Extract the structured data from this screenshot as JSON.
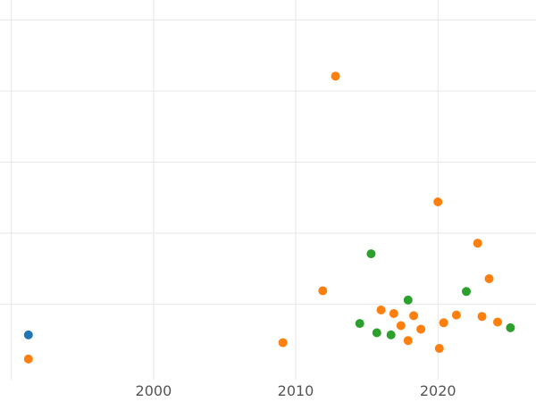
{
  "chart_data": {
    "type": "scatter",
    "title": "",
    "xlabel": "",
    "ylabel": "",
    "legend": "none",
    "grid": true,
    "x_ticks": [
      2000,
      2010,
      2020
    ],
    "x_gridlines": [
      1990,
      2000,
      2010,
      2020
    ],
    "y_gridlines": [
      1,
      2,
      3,
      4,
      5
    ],
    "x_range": [
      1989.2,
      2026.9
    ],
    "y_range": [
      -0.06,
      5.28
    ],
    "marker_radius": 5,
    "colors": {
      "blue": "#1f77b4",
      "orange": "#ff7f0e",
      "green": "#2ca02c",
      "grid": "#e6e6e6",
      "tick_text": "#555555",
      "background": "#ffffff"
    },
    "series": [
      {
        "name": "blue-series",
        "color": "#1f77b4",
        "points": [
          {
            "x": 1991.2,
            "y": 0.57
          }
        ]
      },
      {
        "name": "orange-series",
        "color": "#ff7f0e",
        "points": [
          {
            "x": 1991.2,
            "y": 0.23
          },
          {
            "x": 2009.1,
            "y": 0.46
          },
          {
            "x": 2011.9,
            "y": 1.19
          },
          {
            "x": 2012.8,
            "y": 4.21
          },
          {
            "x": 2016.0,
            "y": 0.92
          },
          {
            "x": 2016.9,
            "y": 0.87
          },
          {
            "x": 2017.4,
            "y": 0.7
          },
          {
            "x": 2017.9,
            "y": 0.49
          },
          {
            "x": 2018.3,
            "y": 0.84
          },
          {
            "x": 2018.8,
            "y": 0.65
          },
          {
            "x": 2020.0,
            "y": 2.44
          },
          {
            "x": 2020.1,
            "y": 0.38
          },
          {
            "x": 2020.4,
            "y": 0.74
          },
          {
            "x": 2021.3,
            "y": 0.85
          },
          {
            "x": 2022.8,
            "y": 1.86
          },
          {
            "x": 2023.1,
            "y": 0.83
          },
          {
            "x": 2023.6,
            "y": 1.36
          },
          {
            "x": 2024.2,
            "y": 0.75
          }
        ]
      },
      {
        "name": "green-series",
        "color": "#2ca02c",
        "points": [
          {
            "x": 2014.5,
            "y": 0.73
          },
          {
            "x": 2015.3,
            "y": 1.71
          },
          {
            "x": 2015.7,
            "y": 0.6
          },
          {
            "x": 2016.7,
            "y": 0.57
          },
          {
            "x": 2017.9,
            "y": 1.06
          },
          {
            "x": 2022.0,
            "y": 1.18
          },
          {
            "x": 2025.1,
            "y": 0.67
          }
        ]
      }
    ]
  }
}
